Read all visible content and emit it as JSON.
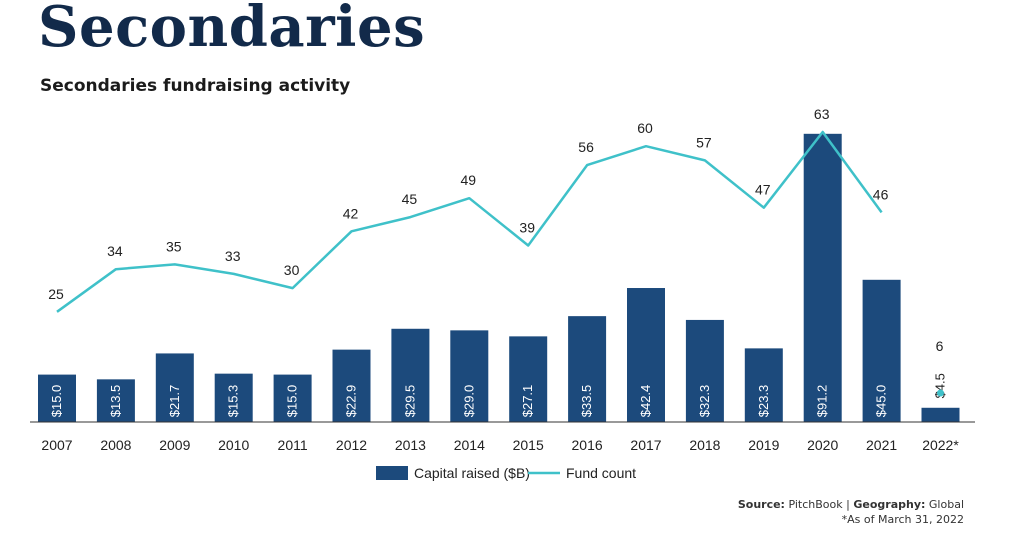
{
  "header": {
    "title": "Secondaries",
    "subtitle": "Secondaries fundraising activity"
  },
  "footer": {
    "source_label": "Source:",
    "source_value": "PitchBook",
    "separator": "|",
    "geography_label": "Geography:",
    "geography_value": "Global",
    "note": "*As of March 31, 2022"
  },
  "colors": {
    "bar": "#1c4a7c",
    "line": "#3fc1c9",
    "axis": "#333333"
  },
  "chart_data": {
    "type": "bar+line",
    "title": "Secondaries fundraising activity",
    "categories": [
      "2007",
      "2008",
      "2009",
      "2010",
      "2011",
      "2012",
      "2013",
      "2014",
      "2015",
      "2016",
      "2017",
      "2018",
      "2019",
      "2020",
      "2021",
      "2022*"
    ],
    "series": [
      {
        "name": "Capital raised ($B)",
        "type": "bar",
        "values": [
          15.0,
          13.5,
          21.7,
          15.3,
          15.0,
          22.9,
          29.5,
          29.0,
          27.1,
          33.5,
          42.4,
          32.3,
          23.3,
          91.2,
          45.0,
          4.5
        ],
        "labels": [
          "$15.0",
          "$13.5",
          "$21.7",
          "$15.3",
          "$15.0",
          "$22.9",
          "$29.5",
          "$29.0",
          "$27.1",
          "$33.5",
          "$42.4",
          "$32.3",
          "$23.3",
          "$91.2",
          "$45.0",
          "$4.5"
        ]
      },
      {
        "name": "Fund count",
        "type": "line",
        "values": [
          25,
          34,
          35,
          33,
          30,
          42,
          45,
          49,
          39,
          56,
          60,
          57,
          47,
          63,
          46,
          6
        ]
      }
    ],
    "legend": [
      "Capital raised ($B)",
      "Fund count"
    ],
    "legend_position": "bottom",
    "bar_ylim": [
      0,
      95
    ],
    "line_ylim": [
      0,
      70
    ],
    "grid": false
  }
}
